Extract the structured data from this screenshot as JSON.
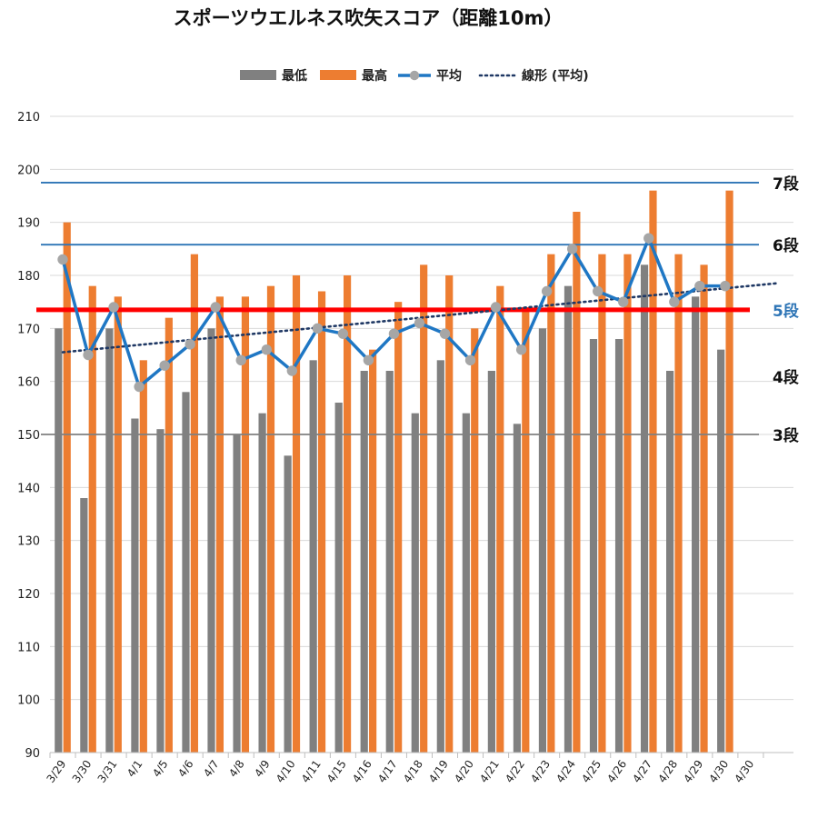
{
  "chart_data": {
    "type": "bar",
    "title": "スポーツウエルネス吹矢スコア（距離10m）",
    "ylim": [
      90,
      210
    ],
    "y_ticks": [
      90,
      100,
      110,
      120,
      130,
      140,
      150,
      160,
      170,
      180,
      190,
      200,
      210
    ],
    "categories": [
      "3/29",
      "3/30",
      "3/31",
      "4/1",
      "4/5",
      "4/6",
      "4/7",
      "4/8",
      "4/9",
      "4/10",
      "4/11",
      "4/15",
      "4/16",
      "4/17",
      "4/18",
      "4/19",
      "4/20",
      "4/21",
      "4/22",
      "4/23",
      "4/24",
      "4/25",
      "4/26",
      "4/27",
      "4/28",
      "4/29",
      "4/30",
      "4/30"
    ],
    "series": [
      {
        "name": "最低",
        "type": "bar",
        "color": "#808080",
        "values": [
          170,
          138,
          170,
          153,
          151,
          158,
          170,
          150,
          154,
          146,
          164,
          156,
          162,
          162,
          154,
          164,
          154,
          162,
          152,
          170,
          178,
          168,
          168,
          182,
          162,
          176,
          166,
          null
        ]
      },
      {
        "name": "最高",
        "type": "bar",
        "color": "#ED7D31",
        "values": [
          190,
          178,
          176,
          164,
          172,
          184,
          176,
          176,
          178,
          180,
          177,
          180,
          166,
          175,
          182,
          180,
          170,
          178,
          174,
          184,
          192,
          184,
          184,
          196,
          184,
          182,
          196,
          null
        ]
      },
      {
        "name": "平均",
        "type": "line",
        "color": "#1F77C4",
        "values": [
          183,
          165,
          174,
          159,
          163,
          167,
          174,
          164,
          166,
          162,
          170,
          169,
          164,
          169,
          171,
          169,
          164,
          174,
          166,
          177,
          185,
          177,
          175,
          187,
          175,
          178,
          178,
          null
        ]
      },
      {
        "name": "線形 (平均)",
        "type": "trendline",
        "color": "#1F3864",
        "from": 165.5,
        "to": 178.5
      }
    ],
    "reference_lines": [
      {
        "label": "7段",
        "value": 197.5,
        "color": "#2E75B6",
        "label_color": "#111111"
      },
      {
        "label": "6段",
        "value": 185.8,
        "color": "#2E75B6",
        "label_color": "#111111"
      },
      {
        "label": "5段",
        "value": 173.5,
        "color": "#FF0000",
        "label_color": "#2E75B6"
      },
      {
        "label": "4段",
        "value": 161.0,
        "color": null,
        "label_color": "#111111"
      },
      {
        "label": "3段",
        "value": 150.0,
        "color": "#808080",
        "label_color": "#111111"
      }
    ],
    "grid": true,
    "legend_position": "top"
  }
}
